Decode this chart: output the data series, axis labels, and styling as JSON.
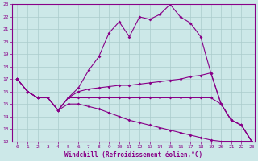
{
  "xlabel": "Windchill (Refroidissement éolien,°C)",
  "background_color": "#cce8e8",
  "grid_color": "#aacccc",
  "line_color": "#880088",
  "xmin": 0,
  "xmax": 23,
  "ymin": 12,
  "ymax": 23,
  "series": [
    {
      "x": [
        0,
        1,
        2,
        3,
        4,
        5,
        6,
        7,
        8,
        9,
        10,
        11,
        12,
        13,
        14,
        15,
        16,
        17,
        18,
        19,
        20,
        21,
        22,
        23
      ],
      "y": [
        17,
        16,
        15.5,
        15.5,
        14.5,
        15.5,
        16.3,
        17.7,
        18.8,
        20.7,
        21.6,
        20.4,
        22.0,
        21.8,
        22.2,
        23.0,
        22.0,
        21.5,
        20.4,
        17.5,
        15.0,
        13.7,
        13.3,
        12.0
      ]
    },
    {
      "x": [
        0,
        1,
        2,
        3,
        4,
        5,
        6,
        7,
        8,
        9,
        10,
        11,
        12,
        13,
        14,
        15,
        16,
        17,
        18,
        19,
        20,
        21,
        22,
        23
      ],
      "y": [
        17,
        16,
        15.5,
        15.5,
        14.5,
        15.5,
        16.0,
        16.2,
        16.3,
        16.4,
        16.5,
        16.5,
        16.6,
        16.7,
        16.8,
        16.9,
        17.0,
        17.2,
        17.3,
        17.5,
        15.0,
        13.7,
        13.3,
        12.0
      ]
    },
    {
      "x": [
        0,
        1,
        2,
        3,
        4,
        5,
        6,
        7,
        8,
        9,
        10,
        11,
        12,
        13,
        14,
        15,
        16,
        17,
        18,
        19,
        20,
        21,
        22,
        23
      ],
      "y": [
        17,
        16,
        15.5,
        15.5,
        14.5,
        15.5,
        15.5,
        15.5,
        15.5,
        15.5,
        15.5,
        15.5,
        15.5,
        15.5,
        15.5,
        15.5,
        15.5,
        15.5,
        15.5,
        15.5,
        15.0,
        13.7,
        13.3,
        12.0
      ]
    },
    {
      "x": [
        0,
        1,
        2,
        3,
        4,
        5,
        6,
        7,
        8,
        9,
        10,
        11,
        12,
        13,
        14,
        15,
        16,
        17,
        18,
        19,
        20,
        21,
        22,
        23
      ],
      "y": [
        17,
        16,
        15.5,
        15.5,
        14.5,
        15.0,
        15.0,
        14.8,
        14.6,
        14.3,
        14.0,
        13.7,
        13.5,
        13.3,
        13.1,
        12.9,
        12.7,
        12.5,
        12.3,
        12.1,
        12.0,
        12.0,
        12.0,
        12.0
      ]
    }
  ]
}
